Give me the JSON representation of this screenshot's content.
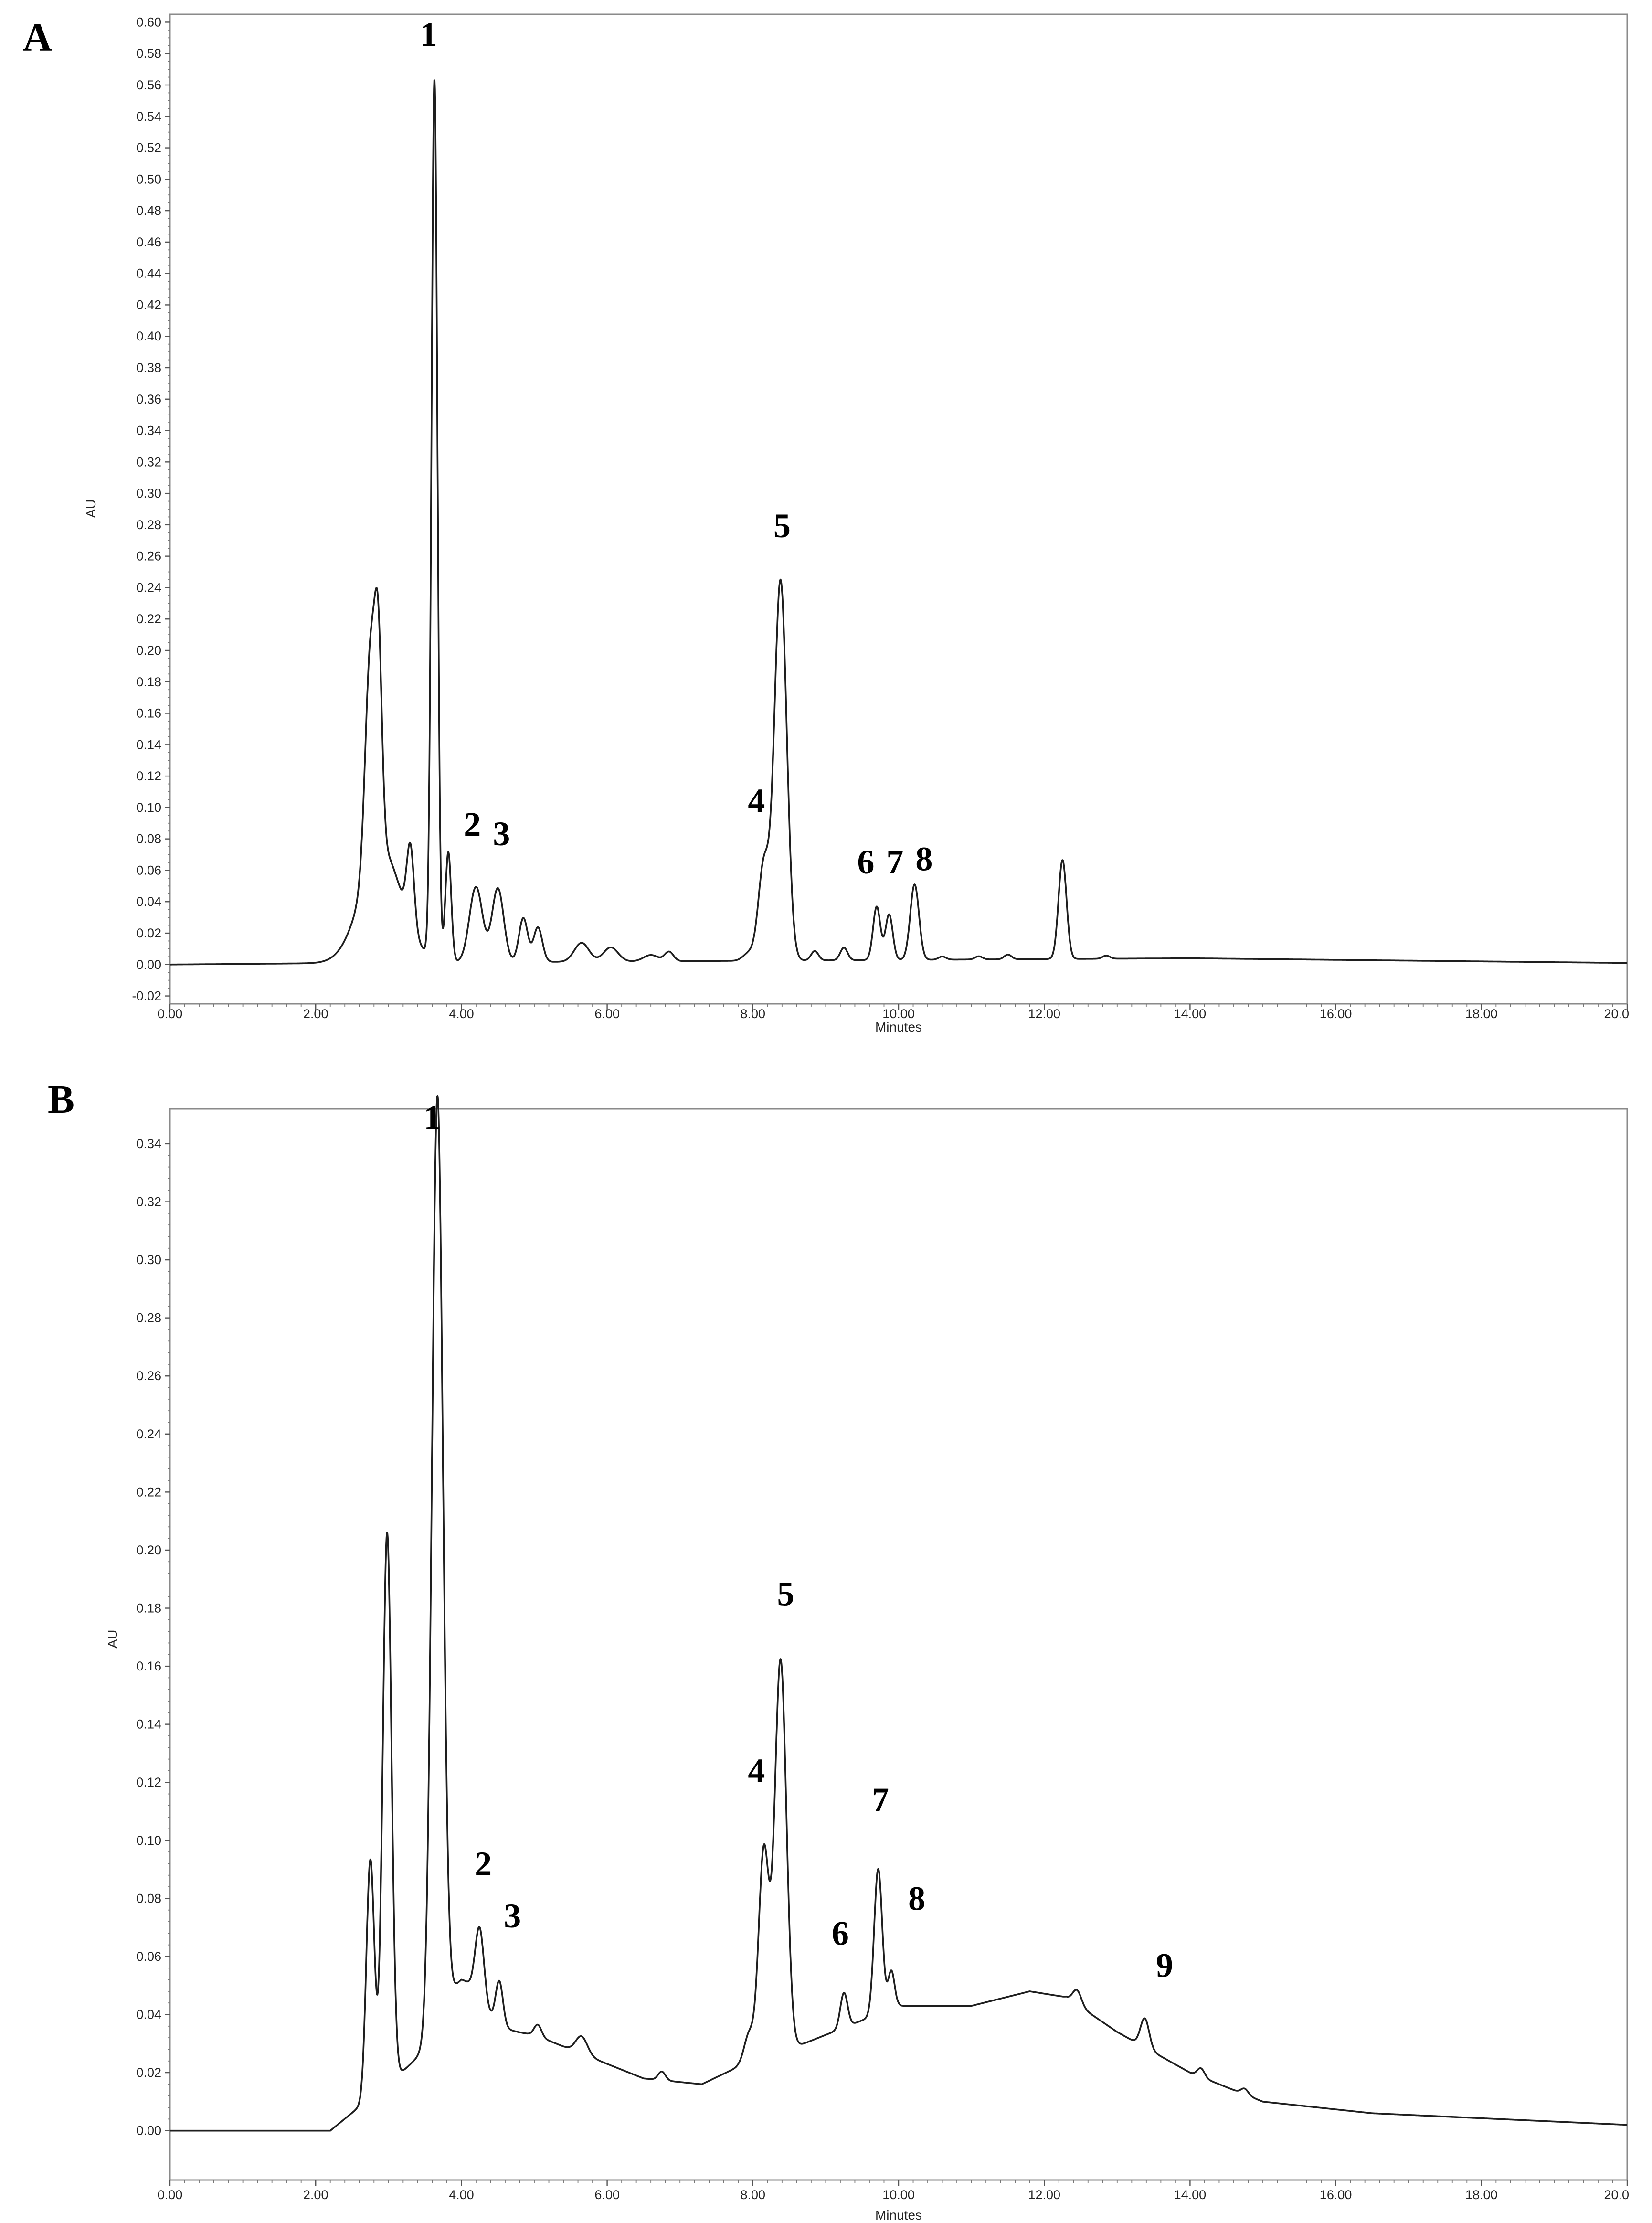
{
  "chart_data": [
    {
      "type": "line",
      "panel": "A",
      "xlabel": "Minutes",
      "ylabel": "AU",
      "xlim": [
        0,
        20
      ],
      "ylim": [
        -0.025,
        0.605
      ],
      "x_ticks": [
        "0.00",
        "2.00",
        "4.00",
        "6.00",
        "8.00",
        "10.00",
        "12.00",
        "14.00",
        "16.00",
        "18.00",
        "20.0"
      ],
      "y_ticks": [
        "-0.02",
        "0.00",
        "0.02",
        "0.04",
        "0.06",
        "0.08",
        "0.10",
        "0.12",
        "0.14",
        "0.16",
        "0.18",
        "0.20",
        "0.22",
        "0.24",
        "0.26",
        "0.28",
        "0.30",
        "0.32",
        "0.34",
        "0.36",
        "0.38",
        "0.40",
        "0.42",
        "0.44",
        "0.46",
        "0.48",
        "0.50",
        "0.52",
        "0.54",
        "0.56",
        "0.58",
        "0.60"
      ],
      "grid": false,
      "baseline": [
        [
          0,
          0
        ],
        [
          2.5,
          0.001
        ],
        [
          14,
          0.004
        ],
        [
          20,
          0.001
        ]
      ],
      "peaks": [
        {
          "x": 2.75,
          "y": 0.135,
          "w": 0.07
        },
        {
          "x": 2.86,
          "y": 0.118,
          "w": 0.05
        },
        {
          "x": 2.9,
          "y": 0.072,
          "w": 0.28
        },
        {
          "x": 3.3,
          "y": 0.05,
          "w": 0.05
        },
        {
          "x": 3.63,
          "y": 0.56,
          "w": 0.04
        },
        {
          "x": 3.82,
          "y": 0.07,
          "w": 0.04
        },
        {
          "x": 4.2,
          "y": 0.048,
          "w": 0.09
        },
        {
          "x": 4.5,
          "y": 0.047,
          "w": 0.08
        },
        {
          "x": 4.85,
          "y": 0.028,
          "w": 0.06
        },
        {
          "x": 5.05,
          "y": 0.022,
          "w": 0.06
        },
        {
          "x": 5.65,
          "y": 0.012,
          "w": 0.1
        },
        {
          "x": 6.05,
          "y": 0.009,
          "w": 0.1
        },
        {
          "x": 6.6,
          "y": 0.004,
          "w": 0.1
        },
        {
          "x": 6.85,
          "y": 0.006,
          "w": 0.06
        },
        {
          "x": 7.95,
          "y": 0.005,
          "w": 0.08
        },
        {
          "x": 8.15,
          "y": 0.06,
          "w": 0.075
        },
        {
          "x": 8.38,
          "y": 0.242,
          "w": 0.085
        },
        {
          "x": 8.85,
          "y": 0.006,
          "w": 0.05
        },
        {
          "x": 9.25,
          "y": 0.008,
          "w": 0.05
        },
        {
          "x": 9.7,
          "y": 0.034,
          "w": 0.05
        },
        {
          "x": 9.87,
          "y": 0.029,
          "w": 0.05
        },
        {
          "x": 10.22,
          "y": 0.048,
          "w": 0.06
        },
        {
          "x": 10.6,
          "y": 0.002,
          "w": 0.05
        },
        {
          "x": 11.1,
          "y": 0.002,
          "w": 0.05
        },
        {
          "x": 11.5,
          "y": 0.003,
          "w": 0.05
        },
        {
          "x": 12.25,
          "y": 0.063,
          "w": 0.055
        },
        {
          "x": 12.85,
          "y": 0.002,
          "w": 0.05
        }
      ],
      "annotations": [
        {
          "text": "1",
          "x": 3.55,
          "y": 0.585
        },
        {
          "text": "2",
          "x": 4.15,
          "y": 0.082
        },
        {
          "text": "3",
          "x": 4.55,
          "y": 0.076
        },
        {
          "text": "4",
          "x": 8.05,
          "y": 0.097
        },
        {
          "text": "5",
          "x": 8.4,
          "y": 0.272
        },
        {
          "text": "6",
          "x": 9.55,
          "y": 0.058
        },
        {
          "text": "7",
          "x": 9.95,
          "y": 0.058
        },
        {
          "text": "8",
          "x": 10.35,
          "y": 0.06
        }
      ]
    },
    {
      "type": "line",
      "panel": "B",
      "xlabel": "Minutes",
      "ylabel": "AU",
      "xlim": [
        0,
        20
      ],
      "ylim": [
        -0.017,
        0.352
      ],
      "x_ticks": [
        "0.00",
        "2.00",
        "4.00",
        "6.00",
        "8.00",
        "10.00",
        "12.00",
        "14.00",
        "16.00",
        "18.00",
        "20.0"
      ],
      "y_ticks": [
        "0.00",
        "0.02",
        "0.04",
        "0.06",
        "0.08",
        "0.10",
        "0.12",
        "0.14",
        "0.16",
        "0.18",
        "0.20",
        "0.22",
        "0.24",
        "0.26",
        "0.28",
        "0.30",
        "0.32",
        "0.34"
      ],
      "grid": false,
      "baseline": [
        [
          0,
          0
        ],
        [
          2.2,
          0
        ],
        [
          4.0,
          0.037
        ],
        [
          5.0,
          0.033
        ],
        [
          6.5,
          0.018
        ],
        [
          7.3,
          0.016
        ],
        [
          7.8,
          0.022
        ],
        [
          8.7,
          0.03
        ],
        [
          9.5,
          0.038
        ],
        [
          10.0,
          0.043
        ],
        [
          11.0,
          0.043
        ],
        [
          11.8,
          0.048
        ],
        [
          12.3,
          0.046
        ],
        [
          13.0,
          0.034
        ],
        [
          14.0,
          0.02
        ],
        [
          15.0,
          0.01
        ],
        [
          16.5,
          0.006
        ],
        [
          20,
          0.002
        ]
      ],
      "peaks": [
        {
          "x": 2.75,
          "y": 0.082,
          "w": 0.055
        },
        {
          "x": 2.98,
          "y": 0.19,
          "w": 0.06
        },
        {
          "x": 3.67,
          "y": 0.32,
          "w": 0.075
        },
        {
          "x": 4.0,
          "y": 0.015,
          "w": 0.25
        },
        {
          "x": 4.25,
          "y": 0.025,
          "w": 0.06
        },
        {
          "x": 4.52,
          "y": 0.015,
          "w": 0.05
        },
        {
          "x": 5.05,
          "y": 0.004,
          "w": 0.05
        },
        {
          "x": 5.65,
          "y": 0.006,
          "w": 0.08
        },
        {
          "x": 6.75,
          "y": 0.003,
          "w": 0.05
        },
        {
          "x": 7.95,
          "y": 0.01,
          "w": 0.07
        },
        {
          "x": 8.15,
          "y": 0.071,
          "w": 0.07
        },
        {
          "x": 8.38,
          "y": 0.135,
          "w": 0.08
        },
        {
          "x": 9.25,
          "y": 0.012,
          "w": 0.05
        },
        {
          "x": 9.72,
          "y": 0.05,
          "w": 0.055
        },
        {
          "x": 9.9,
          "y": 0.013,
          "w": 0.045
        },
        {
          "x": 12.45,
          "y": 0.005,
          "w": 0.06
        },
        {
          "x": 13.38,
          "y": 0.01,
          "w": 0.06
        },
        {
          "x": 14.15,
          "y": 0.003,
          "w": 0.05
        },
        {
          "x": 14.75,
          "y": 0.002,
          "w": 0.05
        }
      ],
      "annotations": [
        {
          "text": "1",
          "x": 3.6,
          "y": 0.345
        },
        {
          "text": "2",
          "x": 4.3,
          "y": 0.088
        },
        {
          "text": "3",
          "x": 4.7,
          "y": 0.07
        },
        {
          "text": "4",
          "x": 8.05,
          "y": 0.12
        },
        {
          "text": "5",
          "x": 8.45,
          "y": 0.181
        },
        {
          "text": "6",
          "x": 9.2,
          "y": 0.064
        },
        {
          "text": "7",
          "x": 9.75,
          "y": 0.11
        },
        {
          "text": "8",
          "x": 10.25,
          "y": 0.076
        },
        {
          "text": "9",
          "x": 13.65,
          "y": 0.053
        }
      ]
    }
  ]
}
